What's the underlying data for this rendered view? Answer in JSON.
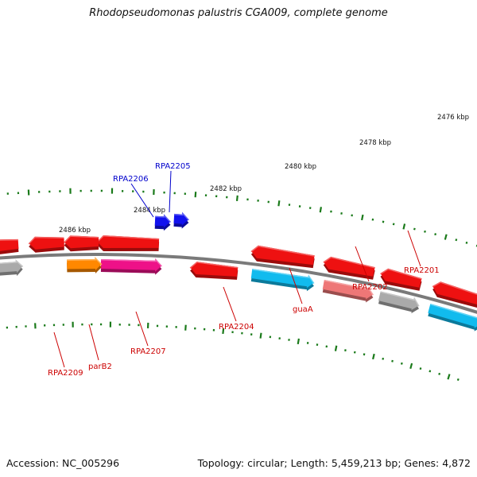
{
  "title": "Rhodopseudomonas palustris CGA009, complete genome",
  "footer": {
    "accession": "Accession: NC_005296",
    "stats": "Topology: circular; Length: 5,459,213 bp; Genes: 4,872"
  },
  "colors": {
    "backbone": "#7a7a7a",
    "tick": "#1a7a1a",
    "tick_label": "#111111",
    "gene_label_red": "#cc0000",
    "gene_label_blue": "#0000cc",
    "red": "#ee1111",
    "light_red": "#ee7777",
    "grey": "#aaaaaa",
    "cyan": "#11bbee",
    "orange": "#ff8800",
    "magenta": "#ee1188",
    "blue": "#1111ee"
  },
  "ruler_labels": [
    "2476 kbp",
    "2478 kbp",
    "2480 kbp",
    "2482 kbp",
    "2484 kbp",
    "2486 kbp"
  ],
  "gene_labels": [
    {
      "name": "RPA2201",
      "color": "red"
    },
    {
      "name": "RPA2202",
      "color": "red"
    },
    {
      "name": "guaA",
      "color": "red"
    },
    {
      "name": "RPA2204",
      "color": "red"
    },
    {
      "name": "RPA2205",
      "color": "blue"
    },
    {
      "name": "RPA2206",
      "color": "blue"
    },
    {
      "name": "RPA2207",
      "color": "red"
    },
    {
      "name": "parB2",
      "color": "red"
    },
    {
      "name": "RPA2209",
      "color": "red"
    }
  ]
}
